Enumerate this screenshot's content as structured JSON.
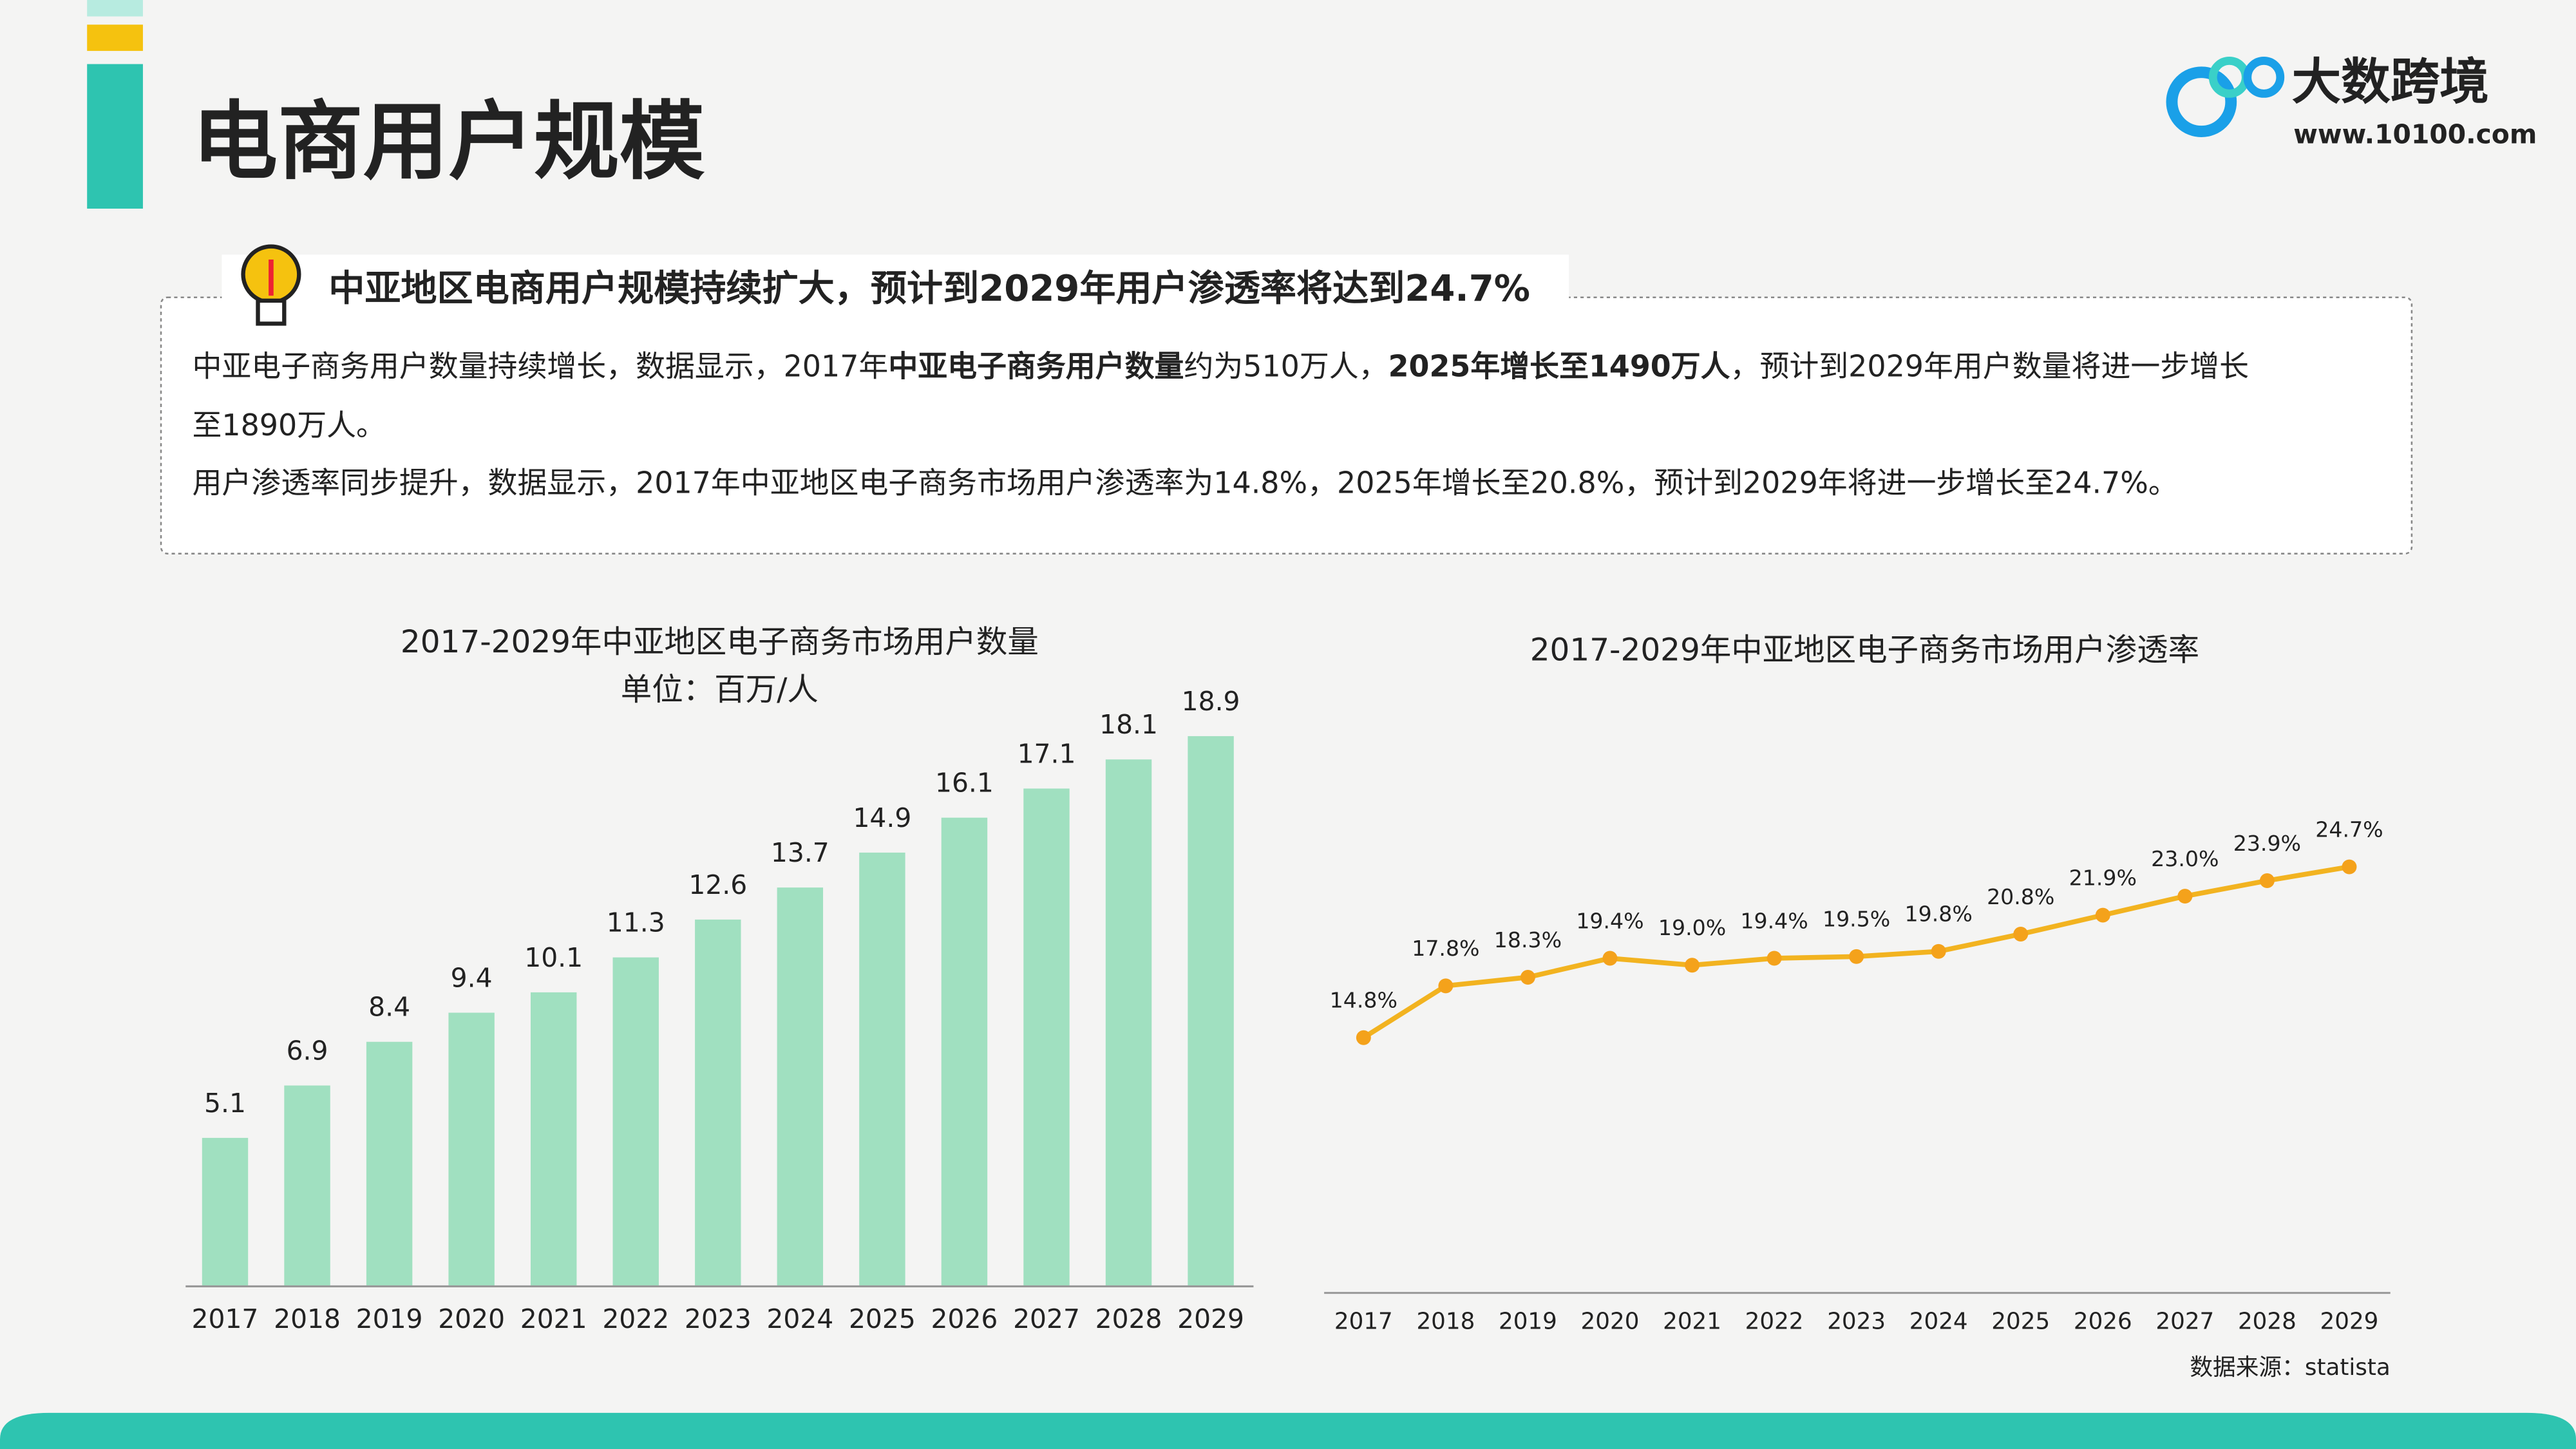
{
  "header": {
    "title": "电商用户规模",
    "logo_name": "大数跨境",
    "logo_url": "www.10100.com"
  },
  "summary": {
    "headline": "中亚地区电商用户规模持续扩大，预计到2029年用户渗透率将达到24.7%",
    "lines": [
      [
        {
          "text": "中亚电子商务用户数量持续增长，数据显示，2017年",
          "bold": false
        },
        {
          "text": "中亚电子商务用户数量",
          "bold": true
        },
        {
          "text": "约为510万人，",
          "bold": false
        },
        {
          "text": "2025年增长至1490万人",
          "bold": true
        },
        {
          "text": "，预计到2029年用户数量将进一步增长",
          "bold": false
        }
      ],
      [
        {
          "text": "至1890万人。",
          "bold": false
        }
      ],
      [
        {
          "text": "用户渗透率同步提升，数据显示，2017年中亚地区电子商务市场用户渗透率为14.8%，2025年增长至20.8%，预计到2029年将进一步增长至24.7%。",
          "bold": false
        }
      ]
    ]
  },
  "chart_data": [
    {
      "type": "bar",
      "title": "2017-2029年中亚地区电子商务市场用户数量",
      "subtitle": "单位：百万/人",
      "categories": [
        "2017",
        "2018",
        "2019",
        "2020",
        "2021",
        "2022",
        "2023",
        "2024",
        "2025",
        "2026",
        "2027",
        "2028",
        "2029"
      ],
      "values": [
        5.1,
        6.9,
        8.4,
        9.4,
        10.1,
        11.3,
        12.6,
        13.7,
        14.9,
        16.1,
        17.1,
        18.1,
        18.9
      ],
      "color": "#a0e0c0"
    },
    {
      "type": "line",
      "title": "2017-2029年中亚地区电子商务市场用户渗透率",
      "categories": [
        "2017",
        "2018",
        "2019",
        "2020",
        "2021",
        "2022",
        "2023",
        "2024",
        "2025",
        "2026",
        "2027",
        "2028",
        "2029"
      ],
      "values": [
        14.8,
        17.8,
        18.3,
        19.4,
        19.0,
        19.4,
        19.5,
        19.8,
        20.8,
        21.9,
        23.0,
        23.9,
        24.7
      ],
      "value_labels": [
        "14.8%",
        "17.8%",
        "18.3%",
        "19.4%",
        "19.0%",
        "19.4%",
        "19.5%",
        "19.8%",
        "20.8%",
        "21.9%",
        "23.0%",
        "23.9%",
        "24.7%"
      ],
      "color": "#f2b320"
    }
  ],
  "source": "数据来源：statista"
}
